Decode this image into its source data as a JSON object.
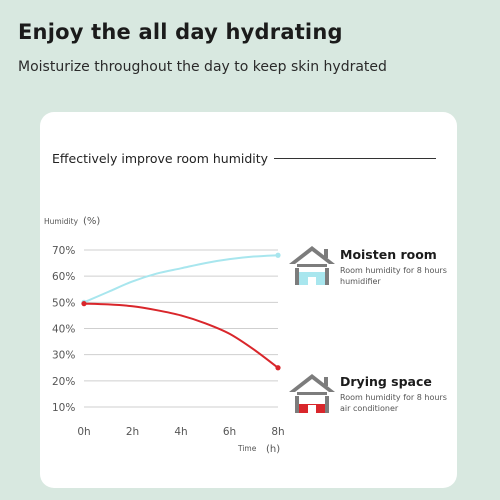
{
  "header": {
    "title": "Enjoy the all day hydrating",
    "subtitle": "Moisturize throughout the day to keep skin hydrated"
  },
  "card": {
    "title": "Effectively improve room humidity"
  },
  "legend": [
    {
      "name": "Moisten room",
      "desc": "Room humidity for 8 hours humidifier",
      "color": "#a8e6ee",
      "icon": "house-humidifier-icon"
    },
    {
      "name": "Drying space",
      "desc": "Room humidity for 8 hours air conditioner",
      "color": "#d9262b",
      "icon": "house-dry-icon"
    }
  ],
  "chart_data": {
    "type": "line",
    "ylabel": "Humidity",
    "yunit": "(%)",
    "xlabel": "Time",
    "xunit": "(h)",
    "ylim": [
      10,
      70
    ],
    "xlim": [
      0,
      8
    ],
    "x_ticks": [
      "0h",
      "2h",
      "4h",
      "6h",
      "8h"
    ],
    "y_ticks": [
      "70%",
      "60%",
      "50%",
      "40%",
      "30%",
      "20%",
      "10%"
    ],
    "grid": true,
    "series": [
      {
        "name": "Moisten room",
        "color": "#a8e6ee",
        "x": [
          0,
          1,
          2,
          3,
          4,
          5,
          6,
          7,
          8
        ],
        "y": [
          50,
          54,
          58,
          61,
          63,
          65,
          66.5,
          67.5,
          68
        ]
      },
      {
        "name": "Drying space",
        "color": "#d9262b",
        "x": [
          0,
          1,
          2,
          3,
          4,
          5,
          6,
          7,
          8
        ],
        "y": [
          49.5,
          49.2,
          48.5,
          47,
          45,
          42,
          38,
          32,
          25
        ]
      }
    ]
  }
}
